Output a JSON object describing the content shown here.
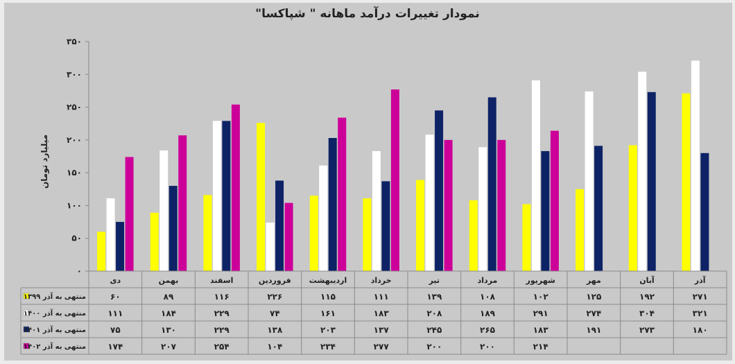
{
  "chart_data": {
    "type": "bar",
    "title": "نمودار تغییرات درآمد ماهانه \" شپاکسا\"",
    "ylabel": "میلیارد تومان",
    "ylim": [
      0,
      350
    ],
    "yticks": [
      "۰",
      "۵۰",
      "۱۰۰",
      "۱۵۰",
      "۲۰۰",
      "۲۵۰",
      "۳۰۰",
      "۳۵۰"
    ],
    "grid": false,
    "categories": [
      "دی",
      "بهمن",
      "اسفند",
      "فروردین",
      "اردیبهشت",
      "خرداد",
      "تیر",
      "مرداد",
      "شهریور",
      "مهر",
      "آبان",
      "آذر"
    ],
    "series": [
      {
        "name": "منتهی به آذر ۱۳۹۹",
        "color": "#ffff00",
        "values": [
          60,
          89,
          116,
          226,
          115,
          111,
          139,
          108,
          102,
          125,
          192,
          271
        ],
        "labels": [
          "۶۰",
          "۸۹",
          "۱۱۶",
          "۲۲۶",
          "۱۱۵",
          "۱۱۱",
          "۱۳۹",
          "۱۰۸",
          "۱۰۲",
          "۱۲۵",
          "۱۹۲",
          "۲۷۱"
        ]
      },
      {
        "name": "منتهی به آذر ۱۴۰۰",
        "color": "#ffffff",
        "values": [
          111,
          184,
          229,
          74,
          161,
          183,
          208,
          189,
          291,
          274,
          304,
          321
        ],
        "labels": [
          "۱۱۱",
          "۱۸۴",
          "۲۲۹",
          "۷۴",
          "۱۶۱",
          "۱۸۳",
          "۲۰۸",
          "۱۸۹",
          "۲۹۱",
          "۲۷۴",
          "۳۰۴",
          "۳۲۱"
        ]
      },
      {
        "name": "منتهی به آذر ۱۴۰۱",
        "color": "#0d2366",
        "values": [
          75,
          130,
          229,
          138,
          203,
          137,
          245,
          265,
          183,
          191,
          273,
          180
        ],
        "labels": [
          "۷۵",
          "۱۳۰",
          "۲۲۹",
          "۱۳۸",
          "۲۰۳",
          "۱۳۷",
          "۲۴۵",
          "۲۶۵",
          "۱۸۳",
          "۱۹۱",
          "۲۷۳",
          "۱۸۰"
        ]
      },
      {
        "name": "منتهی به آذر ۱۴۰۲",
        "color": "#cc0099",
        "values": [
          174,
          207,
          254,
          104,
          234,
          277,
          200,
          200,
          214,
          null,
          null,
          null
        ],
        "labels": [
          "۱۷۴",
          "۲۰۷",
          "۲۵۴",
          "۱۰۴",
          "۲۳۴",
          "۲۷۷",
          "۲۰۰",
          "۲۰۰",
          "۲۱۴",
          "",
          "",
          ""
        ]
      }
    ]
  }
}
